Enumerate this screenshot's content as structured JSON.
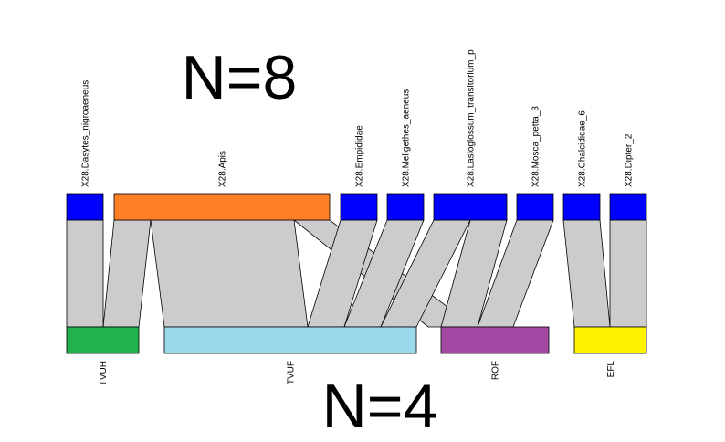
{
  "annotations": {
    "top_count": "N=8",
    "bottom_count": "N=4"
  },
  "top_nodes": [
    {
      "label": "X28.Dasytes_nigroaeneus",
      "color": "#0000ff"
    },
    {
      "label": "X28.Apis",
      "color": "#ff7f27"
    },
    {
      "label": "X28.Empididae",
      "color": "#0000ff"
    },
    {
      "label": "X28.Meligethes_aeneus",
      "color": "#0000ff"
    },
    {
      "label": "X28.Lasioglossum_transitorium_p",
      "color": "#0000ff"
    },
    {
      "label": "X28.Mosca_petta_3",
      "color": "#0000ff"
    },
    {
      "label": "X28.Chalcididae_6",
      "color": "#0000ff"
    },
    {
      "label": "X28.Dipter_2",
      "color": "#0000ff"
    }
  ],
  "bottom_nodes": [
    {
      "label": "TVUH",
      "color": "#22b14c"
    },
    {
      "label": "TVUF",
      "color": "#99d9ea"
    },
    {
      "label": "ROF",
      "color": "#a349a4"
    },
    {
      "label": "EFL",
      "color": "#fff200"
    }
  ],
  "link_color": "#cccccc"
}
